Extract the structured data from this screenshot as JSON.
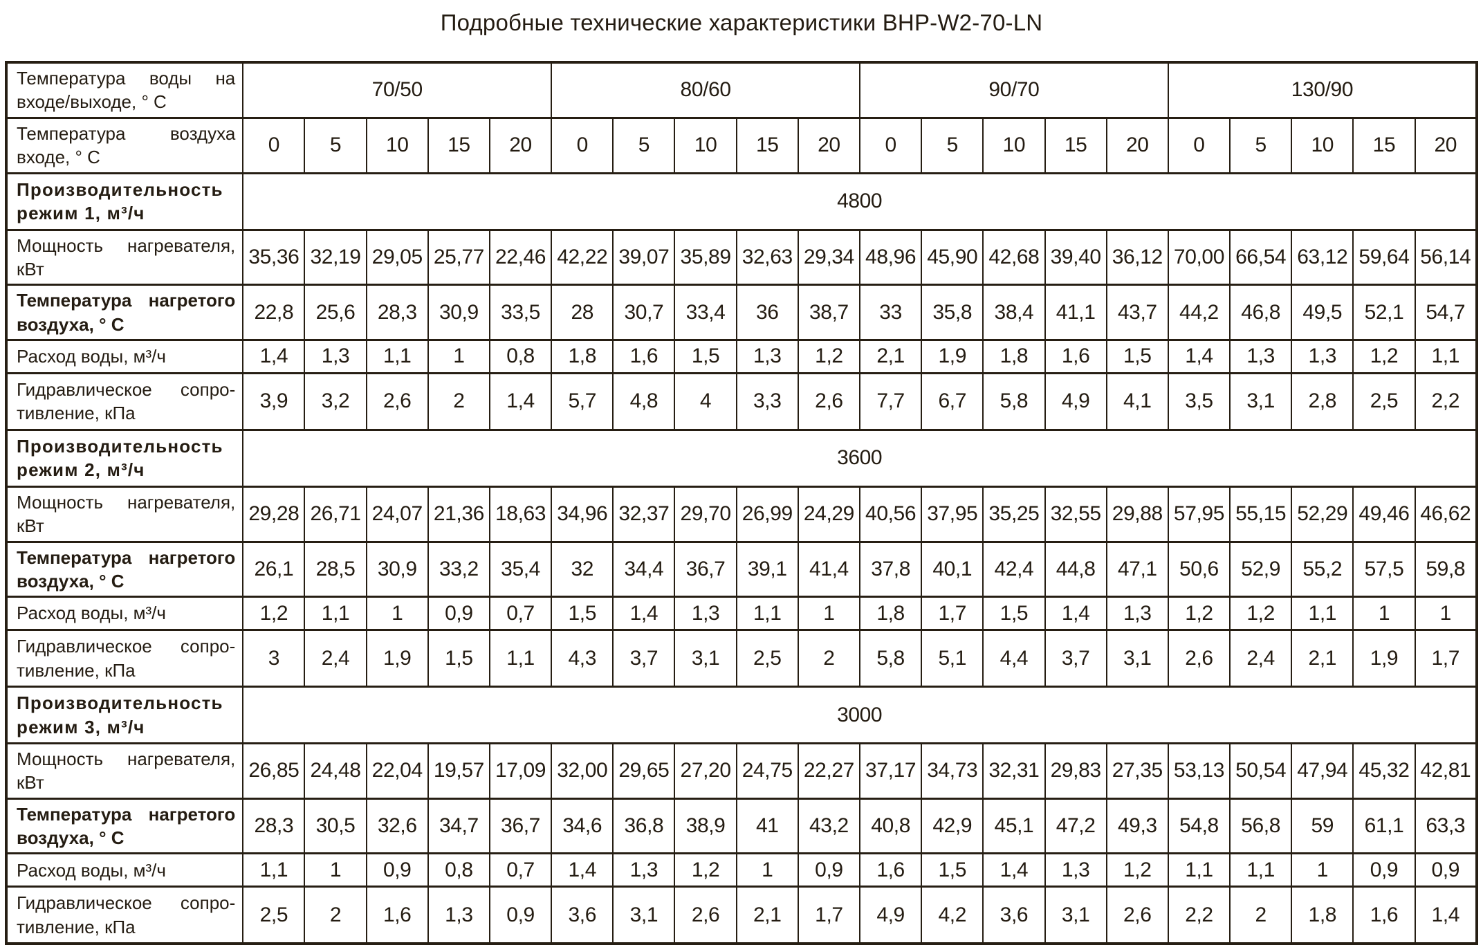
{
  "title": "Подробные технические характеристики BHP-W2-70-LN",
  "colors": {
    "background": "#ffffff",
    "text": "#241c12",
    "border": "#261e13"
  },
  "table": {
    "water_temp_label": "Температура воды на входе/выходе, ° С",
    "air_temp_label": "Температура воздуха входе, ° С",
    "groups": [
      "70/50",
      "80/60",
      "90/70",
      "130/90"
    ],
    "air_temps": [
      "0",
      "5",
      "10",
      "15",
      "20"
    ],
    "sections": [
      {
        "capacity_label": "Производительность режим 1, м³/ч",
        "capacity": "4800",
        "rows": [
          {
            "key": "heater-power",
            "label": "Мощность нагревателя, кВт",
            "values": [
              "35,36",
              "32,19",
              "29,05",
              "25,77",
              "22,46",
              "42,22",
              "39,07",
              "35,89",
              "32,63",
              "29,34",
              "48,96",
              "45,90",
              "42,68",
              "39,40",
              "36,12",
              "70,00",
              "66,54",
              "63,12",
              "59,64",
              "56,14"
            ]
          },
          {
            "key": "heated-air-temp",
            "label": "Температура нагретого воздуха, ° С",
            "values": [
              "22,8",
              "25,6",
              "28,3",
              "30,9",
              "33,5",
              "28",
              "30,7",
              "33,4",
              "36",
              "38,7",
              "33",
              "35,8",
              "38,4",
              "41,1",
              "43,7",
              "44,2",
              "46,8",
              "49,5",
              "52,1",
              "54,7"
            ]
          },
          {
            "key": "water-flow",
            "label": "Расход воды, м³/ч",
            "values": [
              "1,4",
              "1,3",
              "1,1",
              "1",
              "0,8",
              "1,8",
              "1,6",
              "1,5",
              "1,3",
              "1,2",
              "2,1",
              "1,9",
              "1,8",
              "1,6",
              "1,5",
              "1,4",
              "1,3",
              "1,3",
              "1,2",
              "1,1"
            ]
          },
          {
            "key": "hydraulic-resistance",
            "label": "Гидравлическое сопро-тивление, кПа",
            "values": [
              "3,9",
              "3,2",
              "2,6",
              "2",
              "1,4",
              "5,7",
              "4,8",
              "4",
              "3,3",
              "2,6",
              "7,7",
              "6,7",
              "5,8",
              "4,9",
              "4,1",
              "3,5",
              "3,1",
              "2,8",
              "2,5",
              "2,2"
            ]
          }
        ]
      },
      {
        "capacity_label": "Производительность режим 2, м³/ч",
        "capacity": "3600",
        "rows": [
          {
            "key": "heater-power",
            "label": "Мощность нагревателя, кВт",
            "values": [
              "29,28",
              "26,71",
              "24,07",
              "21,36",
              "18,63",
              "34,96",
              "32,37",
              "29,70",
              "26,99",
              "24,29",
              "40,56",
              "37,95",
              "35,25",
              "32,55",
              "29,88",
              "57,95",
              "55,15",
              "52,29",
              "49,46",
              "46,62"
            ]
          },
          {
            "key": "heated-air-temp",
            "label": "Температура нагретого воздуха, ° С",
            "values": [
              "26,1",
              "28,5",
              "30,9",
              "33,2",
              "35,4",
              "32",
              "34,4",
              "36,7",
              "39,1",
              "41,4",
              "37,8",
              "40,1",
              "42,4",
              "44,8",
              "47,1",
              "50,6",
              "52,9",
              "55,2",
              "57,5",
              "59,8"
            ]
          },
          {
            "key": "water-flow",
            "label": "Расход воды, м³/ч",
            "values": [
              "1,2",
              "1,1",
              "1",
              "0,9",
              "0,7",
              "1,5",
              "1,4",
              "1,3",
              "1,1",
              "1",
              "1,8",
              "1,7",
              "1,5",
              "1,4",
              "1,3",
              "1,2",
              "1,2",
              "1,1",
              "1",
              "1"
            ]
          },
          {
            "key": "hydraulic-resistance",
            "label": "Гидравлическое сопро-тивление, кПа",
            "values": [
              "3",
              "2,4",
              "1,9",
              "1,5",
              "1,1",
              "4,3",
              "3,7",
              "3,1",
              "2,5",
              "2",
              "5,8",
              "5,1",
              "4,4",
              "3,7",
              "3,1",
              "2,6",
              "2,4",
              "2,1",
              "1,9",
              "1,7"
            ]
          }
        ]
      },
      {
        "capacity_label": "Производительность режим 3, м³/ч",
        "capacity": "3000",
        "rows": [
          {
            "key": "heater-power",
            "label": "Мощность нагревателя, кВт",
            "values": [
              "26,85",
              "24,48",
              "22,04",
              "19,57",
              "17,09",
              "32,00",
              "29,65",
              "27,20",
              "24,75",
              "22,27",
              "37,17",
              "34,73",
              "32,31",
              "29,83",
              "27,35",
              "53,13",
              "50,54",
              "47,94",
              "45,32",
              "42,81"
            ]
          },
          {
            "key": "heated-air-temp",
            "label": "Температура нагретого воздуха, ° С",
            "values": [
              "28,3",
              "30,5",
              "32,6",
              "34,7",
              "36,7",
              "34,6",
              "36,8",
              "38,9",
              "41",
              "43,2",
              "40,8",
              "42,9",
              "45,1",
              "47,2",
              "49,3",
              "54,8",
              "56,8",
              "59",
              "61,1",
              "63,3"
            ]
          },
          {
            "key": "water-flow",
            "label": "Расход воды, м³/ч",
            "values": [
              "1,1",
              "1",
              "0,9",
              "0,8",
              "0,7",
              "1,4",
              "1,3",
              "1,2",
              "1",
              "0,9",
              "1,6",
              "1,5",
              "1,4",
              "1,3",
              "1,2",
              "1,1",
              "1,1",
              "1",
              "0,9",
              "0,9"
            ]
          },
          {
            "key": "hydraulic-resistance",
            "label": "Гидравлическое сопро-тивление, кПа",
            "values": [
              "2,5",
              "2",
              "1,6",
              "1,3",
              "0,9",
              "3,6",
              "3,1",
              "2,6",
              "2,1",
              "1,7",
              "4,9",
              "4,2",
              "3,6",
              "3,1",
              "2,6",
              "2,2",
              "2",
              "1,8",
              "1,6",
              "1,4"
            ]
          }
        ]
      }
    ]
  }
}
